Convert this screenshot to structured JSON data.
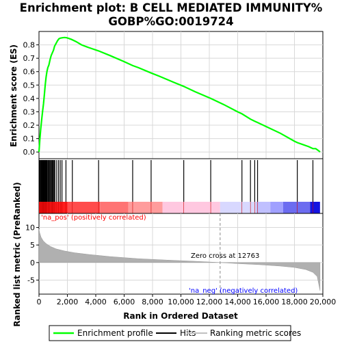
{
  "title_line1": "Enrichment plot: B CELL MEDIATED IMMUNITY%",
  "title_line2": "GOBP%GO:0019724",
  "chart_data": [
    {
      "type": "line",
      "name": "enrichment-profile",
      "ylabel": "Enrichment score (ES)",
      "xlim": [
        0,
        20000
      ],
      "ylim": [
        -0.05,
        0.9
      ],
      "yticks": [
        "0.0",
        "0.1",
        "0.2",
        "0.3",
        "0.4",
        "0.5",
        "0.6",
        "0.7",
        "0.8"
      ],
      "grid": true,
      "x": [
        0,
        60,
        120,
        200,
        260,
        320,
        380,
        440,
        500,
        560,
        620,
        700,
        780,
        860,
        940,
        1020,
        1100,
        1200,
        1300,
        1400,
        1500,
        1650,
        1800,
        1950,
        2100,
        2300,
        2600,
        3000,
        3500,
        4200,
        5000,
        6000,
        6600,
        7000,
        7900,
        8500,
        9500,
        10200,
        11000,
        12100,
        13000,
        14000,
        14300,
        14900,
        15200,
        15400,
        16000,
        17000,
        18000,
        18200,
        18600,
        19000,
        19300,
        19500,
        19700,
        19800
      ],
      "values": [
        0.0,
        0.09,
        0.17,
        0.25,
        0.31,
        0.36,
        0.43,
        0.5,
        0.56,
        0.6,
        0.63,
        0.65,
        0.69,
        0.72,
        0.74,
        0.76,
        0.79,
        0.81,
        0.83,
        0.845,
        0.85,
        0.853,
        0.855,
        0.853,
        0.848,
        0.84,
        0.825,
        0.8,
        0.78,
        0.755,
        0.72,
        0.675,
        0.645,
        0.63,
        0.59,
        0.565,
        0.52,
        0.49,
        0.45,
        0.4,
        0.355,
        0.3,
        0.285,
        0.245,
        0.23,
        0.22,
        0.19,
        0.14,
        0.08,
        0.07,
        0.055,
        0.04,
        0.025,
        0.025,
        0.01,
        0.0
      ]
    },
    {
      "type": "scatter",
      "name": "hits",
      "x": [
        30,
        80,
        130,
        170,
        210,
        250,
        290,
        330,
        370,
        410,
        450,
        490,
        530,
        580,
        640,
        700,
        760,
        820,
        880,
        940,
        1000,
        1060,
        1120,
        1250,
        1380,
        1500,
        1620,
        1900,
        2350,
        4200,
        6600,
        7900,
        10200,
        12100,
        14300,
        14900,
        15200,
        15400,
        18200,
        19300
      ]
    },
    {
      "type": "area",
      "name": "ranked-list-metric",
      "ylabel": "Ranked list metric (PreRanked)",
      "xlabel": "Rank in Ordered Dataset",
      "xlim": [
        0,
        20000
      ],
      "ylim": [
        -9,
        14
      ],
      "yticks": [
        "-5",
        "0",
        "5",
        "10"
      ],
      "xticks": [
        "0",
        "2,000",
        "4,000",
        "6,000",
        "8,000",
        "10,000",
        "12,000",
        "14,000",
        "16,000",
        "18,000",
        "20,000"
      ],
      "x": [
        0,
        50,
        150,
        300,
        500,
        800,
        1200,
        1800,
        2500,
        3500,
        5000,
        7000,
        9000,
        11000,
        12763,
        14000,
        15500,
        17000,
        18000,
        18800,
        19300,
        19600,
        19800
      ],
      "values": [
        9.5,
        8.5,
        7.2,
        6.2,
        5.4,
        4.6,
        3.9,
        3.3,
        2.8,
        2.3,
        1.7,
        1.1,
        0.7,
        0.35,
        0.0,
        -0.3,
        -0.6,
        -1.0,
        -1.4,
        -2.0,
        -2.8,
        -4.0,
        -8.0
      ],
      "zero_cross_label": "Zero cross at 12763",
      "pos_label": "'na_pos' (positively correlated)",
      "neg_label": "'na_neg' (negatively correlated)"
    }
  ],
  "legend": {
    "profile": "Enrichment profile",
    "hits": "Hits",
    "metric": "Ranking metric scores"
  },
  "colors": {
    "profile": "#00ff00",
    "pos_label": "#ff0000",
    "neg_label": "#0000ff",
    "metric_fill": "#b0b0b0",
    "grid": "#d8d8d8"
  }
}
